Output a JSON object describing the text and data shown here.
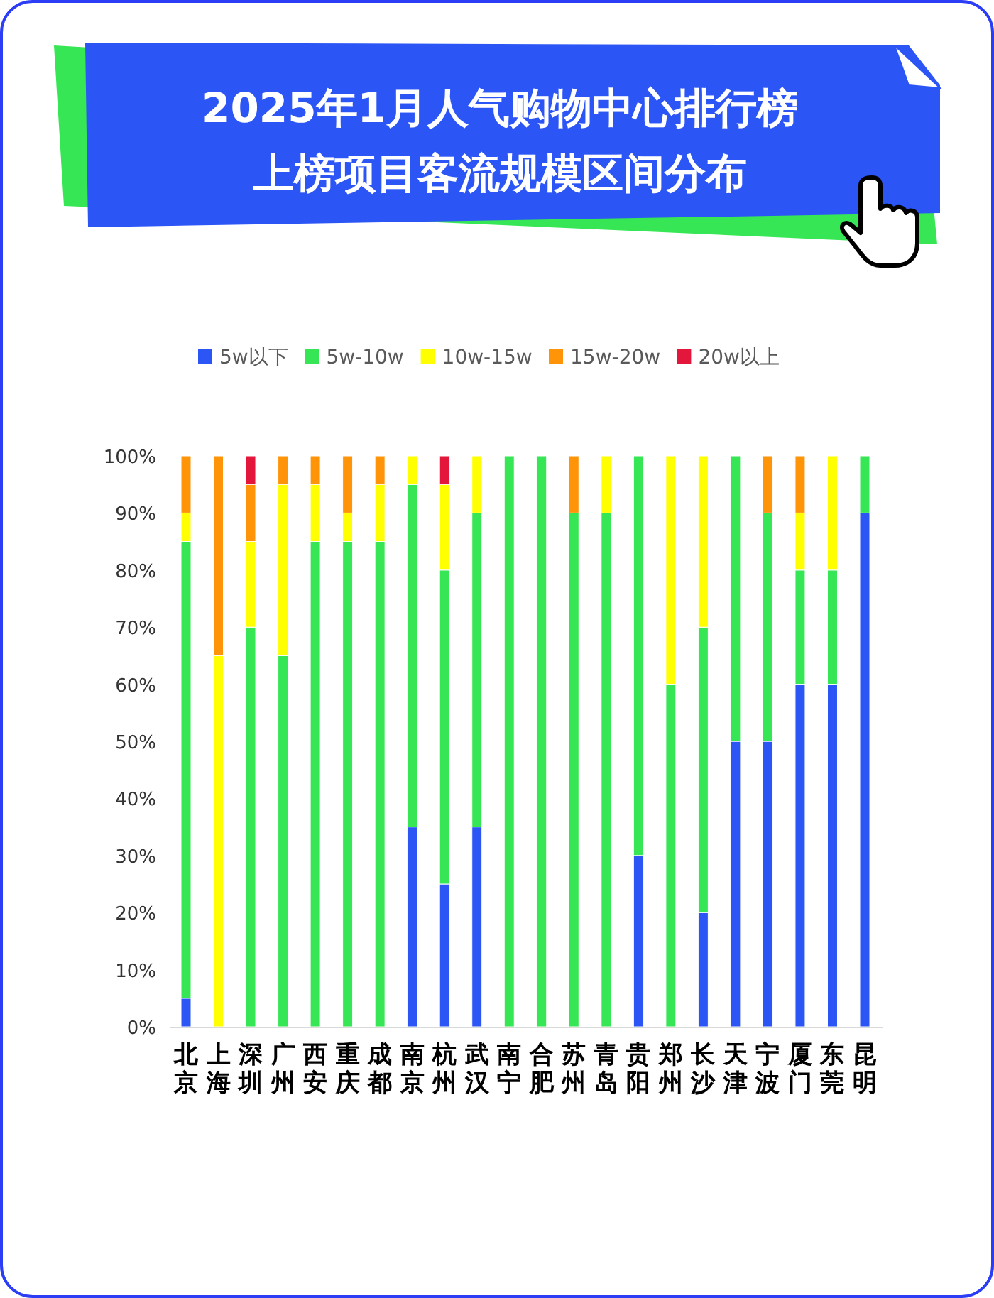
{
  "chart_data": {
    "type": "bar",
    "stacked": true,
    "title": "2025年1月人气购物中心排行榜",
    "subtitle": "上榜项目客流规模区间分布",
    "categories": [
      "北京",
      "上海",
      "深圳",
      "广州",
      "西安",
      "重庆",
      "成都",
      "南京",
      "杭州",
      "武汉",
      "南宁",
      "合肥",
      "苏州",
      "青岛",
      "贵阳",
      "郑州",
      "长沙",
      "天津",
      "宁波",
      "厦门",
      "东莞",
      "昆明"
    ],
    "series": [
      {
        "name": "5w以下",
        "color": "#2b55f5",
        "values": [
          5,
          0,
          0,
          0,
          0,
          0,
          0,
          35,
          25,
          35,
          0,
          0,
          0,
          0,
          30,
          0,
          20,
          50,
          50,
          60,
          60,
          90
        ]
      },
      {
        "name": "5w-10w",
        "color": "#37e655",
        "values": [
          80,
          0,
          70,
          65,
          85,
          85,
          85,
          60,
          55,
          55,
          100,
          100,
          90,
          90,
          70,
          60,
          50,
          50,
          40,
          20,
          20,
          10
        ]
      },
      {
        "name": "10w-15w",
        "color": "#ffff00",
        "values": [
          5,
          65,
          15,
          30,
          10,
          5,
          10,
          5,
          15,
          10,
          0,
          0,
          0,
          10,
          0,
          40,
          30,
          0,
          0,
          10,
          20,
          0
        ]
      },
      {
        "name": "15w-20w",
        "color": "#ff9408",
        "values": [
          10,
          35,
          10,
          5,
          5,
          10,
          5,
          0,
          0,
          0,
          0,
          0,
          10,
          0,
          0,
          0,
          0,
          0,
          10,
          10,
          0,
          0
        ]
      },
      {
        "name": "20w以上",
        "color": "#e3163b",
        "values": [
          0,
          0,
          5,
          0,
          0,
          0,
          0,
          0,
          5,
          0,
          0,
          0,
          0,
          0,
          0,
          0,
          0,
          0,
          0,
          0,
          0,
          0
        ]
      }
    ],
    "ylim": [
      0,
      100
    ],
    "yticks": [
      {
        "value": 0,
        "label": "0%"
      },
      {
        "value": 10,
        "label": "10%"
      },
      {
        "value": 20,
        "label": "20%"
      },
      {
        "value": 30,
        "label": "30%"
      },
      {
        "value": 40,
        "label": "40%"
      },
      {
        "value": 50,
        "label": "50%"
      },
      {
        "value": 60,
        "label": "60%"
      },
      {
        "value": 70,
        "label": "70%"
      },
      {
        "value": 80,
        "label": "80%"
      },
      {
        "value": 90,
        "label": "90%"
      },
      {
        "value": 100,
        "label": "100%"
      }
    ],
    "legend": "top",
    "grid": false
  }
}
